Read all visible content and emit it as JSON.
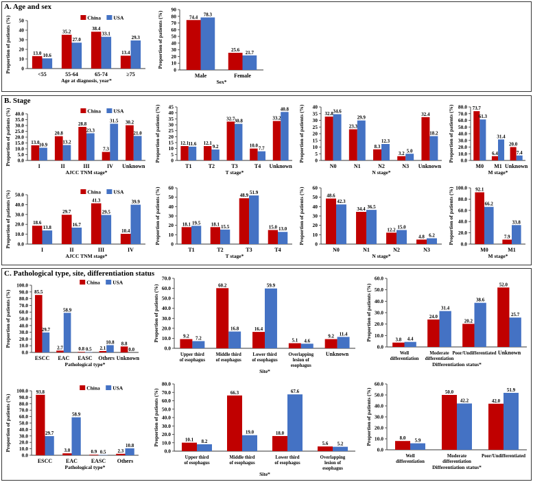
{
  "panels": {
    "a_title": "A. Age and sex",
    "b_title": "B. Stage",
    "c_title": "C. Pathological type, site, differentiation status"
  },
  "legend": {
    "series1": "China",
    "series2": "USA"
  },
  "colors": {
    "china": "#C00000",
    "usa": "#4472C4",
    "axis": "#333333"
  },
  "ylabel": "Proportion of patients (%)",
  "chart_data": [
    {
      "id": "a1",
      "type": "bar",
      "categories": [
        "<55",
        "55-64",
        "65-74",
        "≥75"
      ],
      "series": [
        {
          "name": "China",
          "values": [
            13.0,
            35.2,
            38.4,
            13.4
          ]
        },
        {
          "name": "USA",
          "values": [
            10.6,
            27.0,
            33.1,
            29.3
          ]
        }
      ],
      "ylim": [
        0,
        50
      ],
      "ticks": [
        0,
        10,
        20,
        30,
        40,
        50
      ],
      "decimals": 0,
      "xlabel": "Age at diagnosis, year*",
      "legend": true
    },
    {
      "id": "a2",
      "type": "bar",
      "categories": [
        "Male",
        "Female"
      ],
      "series": [
        {
          "name": "China",
          "values": [
            74.4,
            25.6
          ]
        },
        {
          "name": "USA",
          "values": [
            78.3,
            21.7
          ]
        }
      ],
      "ylim": [
        0,
        90
      ],
      "ticks": [
        0,
        10,
        20,
        30,
        40,
        50,
        60,
        70,
        80,
        90
      ],
      "decimals": 0,
      "xlabel": "Sex*",
      "legend": false
    },
    {
      "id": "b1",
      "type": "bar",
      "categories": [
        "I",
        "II",
        "III",
        "IV",
        "Unknown"
      ],
      "series": [
        {
          "name": "China",
          "values": [
            13.0,
            20.8,
            28.8,
            7.3,
            30.2
          ]
        },
        {
          "name": "USA",
          "values": [
            10.9,
            13.2,
            23.3,
            31.5,
            21.0
          ]
        }
      ],
      "ylim": [
        0,
        40
      ],
      "ticks": [
        0,
        5,
        10,
        15,
        20,
        25,
        30,
        35,
        40
      ],
      "decimals": 1,
      "xlabel": "AJCC TNM stage*",
      "legend": true
    },
    {
      "id": "b2",
      "type": "bar",
      "categories": [
        "T1",
        "T2",
        "T3",
        "T4",
        "Unknown"
      ],
      "series": [
        {
          "name": "China",
          "values": [
            12.1,
            12.1,
            32.7,
            10.0,
            33.2
          ]
        },
        {
          "name": "USA",
          "values": [
            11.6,
            9.2,
            30.8,
            7.7,
            40.8
          ]
        }
      ],
      "ylim": [
        0,
        45
      ],
      "ticks": [
        0,
        5,
        10,
        15,
        20,
        25,
        30,
        35,
        40,
        45
      ],
      "decimals": 0,
      "xlabel": "T stage*",
      "legend": false
    },
    {
      "id": "b3",
      "type": "bar",
      "categories": [
        "N0",
        "N1",
        "N2",
        "N3",
        "Unknown"
      ],
      "series": [
        {
          "name": "China",
          "values": [
            32.8,
            23.3,
            8.3,
            3.2,
            32.4
          ]
        },
        {
          "name": "USA",
          "values": [
            34.6,
            29.9,
            12.3,
            5.0,
            18.2
          ]
        }
      ],
      "ylim": [
        0,
        40
      ],
      "ticks": [
        0,
        5,
        10,
        15,
        20,
        25,
        30,
        35,
        40
      ],
      "decimals": 0,
      "xlabel": "N stage*",
      "legend": false
    },
    {
      "id": "b4",
      "type": "bar",
      "categories": [
        "M0",
        "M1",
        "Unknown"
      ],
      "series": [
        {
          "name": "China",
          "values": [
            73.7,
            6.4,
            20.0
          ]
        },
        {
          "name": "USA",
          "values": [
            61.3,
            31.4,
            7.4
          ]
        }
      ],
      "ylim": [
        0,
        80
      ],
      "ticks": [
        0,
        10,
        20,
        30,
        40,
        50,
        60,
        70,
        80
      ],
      "decimals": 1,
      "xlabel": "M stage*",
      "legend": false
    },
    {
      "id": "b5",
      "type": "bar",
      "categories": [
        "I",
        "II",
        "III",
        "IV"
      ],
      "series": [
        {
          "name": "China",
          "values": [
            18.6,
            29.7,
            41.3,
            10.4
          ]
        },
        {
          "name": "USA",
          "values": [
            13.8,
            16.7,
            29.5,
            39.9
          ]
        }
      ],
      "ylim": [
        0,
        50
      ],
      "ticks": [
        0,
        10,
        20,
        30,
        40,
        50
      ],
      "decimals": 1,
      "xlabel": "AJCC TNM stage*",
      "legend": true
    },
    {
      "id": "b6",
      "type": "bar",
      "categories": [
        "T1",
        "T2",
        "T3",
        "T4"
      ],
      "series": [
        {
          "name": "China",
          "values": [
            18.1,
            18.1,
            48.9,
            15.0
          ]
        },
        {
          "name": "USA",
          "values": [
            19.5,
            15.5,
            51.9,
            13.0
          ]
        }
      ],
      "ylim": [
        0,
        60
      ],
      "ticks": [
        0,
        10,
        20,
        30,
        40,
        50,
        60
      ],
      "decimals": 0,
      "xlabel": "T stage*",
      "legend": false
    },
    {
      "id": "b7",
      "type": "bar",
      "categories": [
        "N0",
        "N1",
        "N2",
        "N3"
      ],
      "series": [
        {
          "name": "China",
          "values": [
            48.6,
            34.4,
            12.2,
            4.8
          ]
        },
        {
          "name": "USA",
          "values": [
            42.3,
            36.5,
            15.0,
            6.2
          ]
        }
      ],
      "ylim": [
        0,
        60
      ],
      "ticks": [
        0,
        10,
        20,
        30,
        40,
        50,
        60
      ],
      "decimals": 0,
      "xlabel": "N stage*",
      "legend": false
    },
    {
      "id": "b8",
      "type": "bar",
      "categories": [
        "M0",
        "M1"
      ],
      "series": [
        {
          "name": "China",
          "values": [
            92.1,
            7.9
          ]
        },
        {
          "name": "USA",
          "values": [
            66.2,
            33.8
          ]
        }
      ],
      "ylim": [
        0,
        100
      ],
      "ticks": [
        0,
        20,
        40,
        60,
        80,
        100
      ],
      "decimals": 1,
      "xlabel": "M stage*",
      "legend": false
    },
    {
      "id": "c1",
      "type": "bar",
      "categories": [
        "ESCC",
        "EAC",
        "EASC",
        "Others",
        "Unknown"
      ],
      "series": [
        {
          "name": "China",
          "values": [
            85.5,
            2.7,
            0.8,
            2.1,
            8.8
          ]
        },
        {
          "name": "USA",
          "values": [
            29.7,
            58.9,
            0.5,
            10.8,
            0.0
          ]
        }
      ],
      "ylim": [
        0,
        100
      ],
      "ticks": [
        0,
        10,
        20,
        30,
        40,
        50,
        60,
        70,
        80,
        90,
        100
      ],
      "decimals": 1,
      "xlabel": "Pathological type*",
      "legend": true
    },
    {
      "id": "c2",
      "type": "bar",
      "categories": [
        "Upper third of esophagus",
        "Middle third of esophagus",
        "Lower third of esophagus",
        "Overlapping lesion of esophagus",
        "Unknown"
      ],
      "series": [
        {
          "name": "China",
          "values": [
            9.2,
            60.2,
            16.4,
            5.1,
            9.2
          ]
        },
        {
          "name": "USA",
          "values": [
            7.2,
            16.8,
            59.9,
            4.6,
            11.4
          ]
        }
      ],
      "ylim": [
        0,
        70
      ],
      "ticks": [
        0,
        10,
        20,
        30,
        40,
        50,
        60,
        70
      ],
      "decimals": 1,
      "xlabel": "Site*",
      "legend": false
    },
    {
      "id": "c3",
      "type": "bar",
      "categories": [
        "Well differentiation",
        "Moderate differentiation",
        "Poor/Undifferentiated",
        "Unknown"
      ],
      "series": [
        {
          "name": "China",
          "values": [
            3.8,
            24.0,
            20.2,
            52.0
          ]
        },
        {
          "name": "USA",
          "values": [
            4.4,
            31.4,
            38.6,
            25.7
          ]
        }
      ],
      "ylim": [
        0,
        60
      ],
      "ticks": [
        0,
        10,
        20,
        30,
        40,
        50,
        60
      ],
      "decimals": 1,
      "xlabel": "Differentiation status*",
      "legend": false
    },
    {
      "id": "c4",
      "type": "bar",
      "categories": [
        "ESCC",
        "EAC",
        "EASC",
        "Others"
      ],
      "series": [
        {
          "name": "China",
          "values": [
            93.8,
            3.0,
            0.9,
            2.3
          ]
        },
        {
          "name": "USA",
          "values": [
            29.7,
            58.9,
            0.5,
            10.8
          ]
        }
      ],
      "ylim": [
        0,
        100
      ],
      "ticks": [
        0,
        10,
        20,
        30,
        40,
        50,
        60,
        70,
        80,
        90,
        100
      ],
      "decimals": 1,
      "xlabel": "Pathological type*",
      "legend": true
    },
    {
      "id": "c5",
      "type": "bar",
      "categories": [
        "Upper third of esophagus",
        "Middle third of esophagus",
        "Lower third of esophagus",
        "Overlapping lesion of esophagus"
      ],
      "series": [
        {
          "name": "China",
          "values": [
            10.1,
            66.3,
            18.0,
            5.6
          ]
        },
        {
          "name": "USA",
          "values": [
            8.2,
            19.0,
            67.6,
            5.2
          ]
        }
      ],
      "ylim": [
        0,
        80
      ],
      "ticks": [
        0,
        10,
        20,
        30,
        40,
        50,
        60,
        70,
        80
      ],
      "decimals": 1,
      "xlabel": "Site*",
      "legend": false
    },
    {
      "id": "c6",
      "type": "bar",
      "categories": [
        "Well differentiation",
        "Moderate differentiation",
        "Poor/Undifferentiated"
      ],
      "series": [
        {
          "name": "China",
          "values": [
            8.0,
            50.0,
            42.0
          ]
        },
        {
          "name": "USA",
          "values": [
            5.9,
            42.2,
            51.9
          ]
        }
      ],
      "ylim": [
        0,
        60
      ],
      "ticks": [
        0,
        10,
        20,
        30,
        40,
        50,
        60
      ],
      "decimals": 1,
      "xlabel": "Differentiation status*",
      "legend": false
    }
  ]
}
